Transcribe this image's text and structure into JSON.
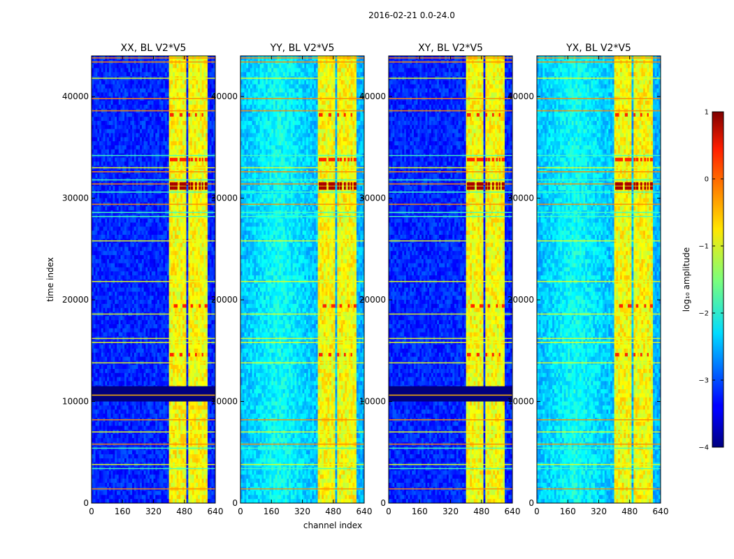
{
  "figure_title": "2016-02-21 0.0-24.0",
  "chart_data": {
    "type": "heatmap",
    "title": "2016-02-21 0.0-24.0",
    "xlabel": "channel index",
    "ylabel": "time index",
    "xlim": [
      0,
      640
    ],
    "ylim": [
      0,
      44000
    ],
    "x_ticks": [
      "0",
      "160",
      "320",
      "480",
      "640"
    ],
    "y_ticks": [
      "0",
      "10000",
      "20000",
      "30000",
      "40000"
    ],
    "x_tick_values": [
      0,
      160,
      320,
      480,
      640
    ],
    "y_tick_values": [
      0,
      10000,
      20000,
      30000,
      40000
    ],
    "panels": [
      {
        "title": "XX, BL V2*V5",
        "background_level": -3.2,
        "has_dark_gap": true
      },
      {
        "title": "YY, BL V2*V5",
        "background_level": -2.5,
        "has_dark_gap": false
      },
      {
        "title": "XY, BL V2*V5",
        "background_level": -3.2,
        "has_dark_gap": true
      },
      {
        "title": "YX, BL V2*V5",
        "background_level": -2.5,
        "has_dark_gap": false
      }
    ],
    "bright_band_channels": [
      [
        405,
        425
      ],
      [
        425,
        445
      ],
      [
        455,
        470
      ],
      [
        470,
        490
      ],
      [
        500,
        510
      ],
      [
        512,
        525
      ],
      [
        535,
        545
      ],
      [
        555,
        565
      ],
      [
        570,
        578
      ],
      [
        585,
        600
      ]
    ],
    "dark_gap_time": [
      10000,
      11500
    ],
    "high_flag_times": [
      31500,
      31000,
      34000,
      33800,
      38000,
      19500,
      14800
    ],
    "colorbar": {
      "label": "log₁₀ amplitude",
      "ticks": [
        "1",
        "0",
        "−1",
        "−2",
        "−3",
        "−4"
      ],
      "tick_values": [
        1,
        0,
        -1,
        -2,
        -3,
        -4
      ],
      "range": [
        -4,
        1
      ],
      "colormap": "jet"
    }
  }
}
